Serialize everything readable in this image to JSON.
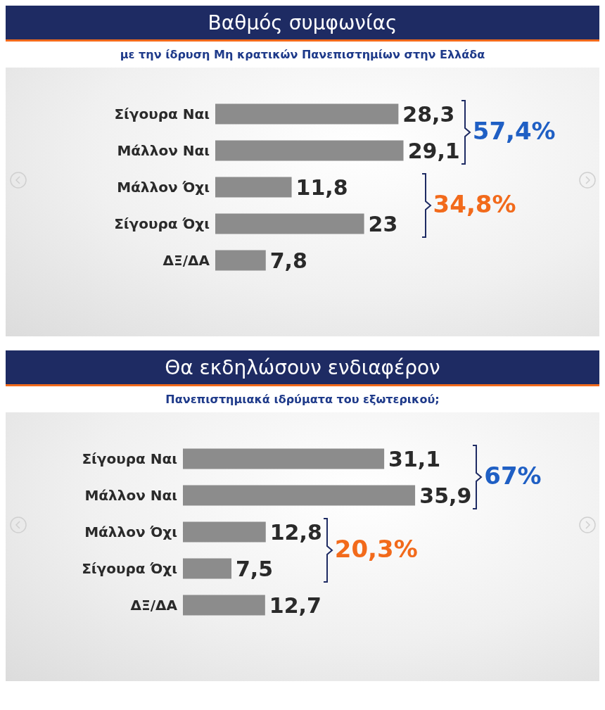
{
  "chart_data": [
    {
      "type": "bar",
      "orientation": "horizontal",
      "title": "Βαθμός συμφωνίας",
      "subtitle": "με την ίδρυση Μη κρατικών Πανεπιστημίων στην Ελλάδα",
      "categories": [
        "Σίγουρα Ναι",
        "Μάλλον Ναι",
        "Μάλλον Όχι",
        "Σίγουρα Όχι",
        "ΔΞ/ΔΑ"
      ],
      "values": [
        28.3,
        29.1,
        11.8,
        23,
        7.8
      ],
      "value_labels": [
        "28,3",
        "29,1",
        "11,8",
        "23",
        "7,8"
      ],
      "color": "#8c8c8c",
      "annotations": [
        "57,4%",
        "34,8%"
      ]
    },
    {
      "type": "bar",
      "orientation": "horizontal",
      "title": "Θα εκδηλώσουν ενδιαφέρον",
      "subtitle": "Πανεπιστημιακά ιδρύματα του εξωτερικού;",
      "categories": [
        "Σίγουρα Ναι",
        "Μάλλον Ναι",
        "Μάλλον Όχι",
        "Σίγουρα Όχι",
        "ΔΞ/ΔΑ"
      ],
      "values": [
        31.1,
        35.9,
        12.8,
        7.5,
        12.7
      ],
      "value_labels": [
        "31,1",
        "35,9",
        "12,8",
        "7,5",
        "12,7"
      ],
      "color": "#8c8c8c",
      "annotations": [
        "67%",
        "20,3%"
      ]
    }
  ]
}
